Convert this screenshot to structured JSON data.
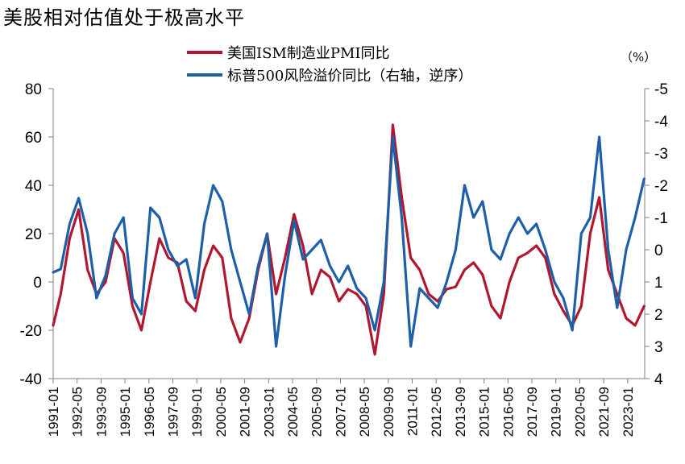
{
  "chart_data": {
    "type": "line",
    "title": "美股相对估值处于极高水平",
    "unit_label": "（%）",
    "y_left": {
      "range": [
        -40,
        80
      ],
      "ticks": [
        80,
        60,
        40,
        20,
        0,
        -20,
        -40
      ]
    },
    "y_right": {
      "range": [
        -5,
        4
      ],
      "reversed": true,
      "ticks": [
        -5,
        -4,
        -3,
        -2,
        -1,
        0,
        1,
        2,
        3,
        4
      ]
    },
    "x_ticks": [
      "1991-01",
      "1992-05",
      "1993-09",
      "1995-01",
      "1996-05",
      "1997-09",
      "1999-01",
      "2000-05",
      "2001-09",
      "2003-01",
      "2004-05",
      "2005-09",
      "2007-01",
      "2008-05",
      "2009-09",
      "2011-01",
      "2012-05",
      "2013-09",
      "2015-01",
      "2016-05",
      "2017-09",
      "2019-01",
      "2020-05",
      "2021-09",
      "2023-01"
    ],
    "legend_placement": "top",
    "series": [
      {
        "name": "美国ISM制造业PMI同比",
        "axis": "left",
        "color": "#b0182f",
        "points": [
          [
            "1991-01",
            -18
          ],
          [
            "1991-06",
            -5
          ],
          [
            "1991-12",
            18
          ],
          [
            "1992-06",
            30
          ],
          [
            "1992-12",
            5
          ],
          [
            "1993-06",
            -5
          ],
          [
            "1993-12",
            0
          ],
          [
            "1994-06",
            18
          ],
          [
            "1994-12",
            12
          ],
          [
            "1995-06",
            -10
          ],
          [
            "1995-12",
            -20
          ],
          [
            "1996-06",
            0
          ],
          [
            "1996-12",
            18
          ],
          [
            "1997-06",
            10
          ],
          [
            "1997-12",
            8
          ],
          [
            "1998-06",
            -8
          ],
          [
            "1998-12",
            -12
          ],
          [
            "1999-06",
            5
          ],
          [
            "1999-12",
            15
          ],
          [
            "2000-06",
            10
          ],
          [
            "2000-12",
            -15
          ],
          [
            "2001-06",
            -25
          ],
          [
            "2001-12",
            -15
          ],
          [
            "2002-06",
            5
          ],
          [
            "2002-12",
            20
          ],
          [
            "2003-06",
            -5
          ],
          [
            "2003-12",
            10
          ],
          [
            "2004-06",
            28
          ],
          [
            "2004-12",
            15
          ],
          [
            "2005-06",
            -5
          ],
          [
            "2005-12",
            5
          ],
          [
            "2006-06",
            2
          ],
          [
            "2006-12",
            -8
          ],
          [
            "2007-06",
            -3
          ],
          [
            "2007-12",
            -5
          ],
          [
            "2008-06",
            -10
          ],
          [
            "2008-12",
            -30
          ],
          [
            "2009-06",
            -5
          ],
          [
            "2009-12",
            65
          ],
          [
            "2010-06",
            35
          ],
          [
            "2010-12",
            10
          ],
          [
            "2011-06",
            5
          ],
          [
            "2011-12",
            -5
          ],
          [
            "2012-06",
            -8
          ],
          [
            "2012-12",
            -3
          ],
          [
            "2013-06",
            -2
          ],
          [
            "2013-12",
            5
          ],
          [
            "2014-06",
            8
          ],
          [
            "2014-12",
            3
          ],
          [
            "2015-06",
            -10
          ],
          [
            "2015-12",
            -15
          ],
          [
            "2016-06",
            0
          ],
          [
            "2016-12",
            10
          ],
          [
            "2017-06",
            12
          ],
          [
            "2017-12",
            15
          ],
          [
            "2018-06",
            10
          ],
          [
            "2018-12",
            -5
          ],
          [
            "2019-06",
            -12
          ],
          [
            "2019-12",
            -18
          ],
          [
            "2020-06",
            -10
          ],
          [
            "2020-12",
            20
          ],
          [
            "2021-06",
            35
          ],
          [
            "2021-12",
            5
          ],
          [
            "2022-06",
            -5
          ],
          [
            "2022-12",
            -15
          ],
          [
            "2023-06",
            -18
          ],
          [
            "2023-12",
            -10
          ]
        ]
      },
      {
        "name": "标普500风险溢价同比（右轴，逆序）",
        "axis": "right",
        "color": "#1f5fa8",
        "points": [
          [
            "1991-01",
            0.7
          ],
          [
            "1991-06",
            0.6
          ],
          [
            "1991-12",
            -0.8
          ],
          [
            "1992-06",
            -1.6
          ],
          [
            "1992-12",
            -0.5
          ],
          [
            "1993-06",
            1.5
          ],
          [
            "1993-12",
            0.8
          ],
          [
            "1994-06",
            -0.5
          ],
          [
            "1994-12",
            -1.0
          ],
          [
            "1995-06",
            1.5
          ],
          [
            "1995-12",
            2.0
          ],
          [
            "1996-06",
            -1.3
          ],
          [
            "1996-12",
            -1.0
          ],
          [
            "1997-06",
            0.0
          ],
          [
            "1997-12",
            0.5
          ],
          [
            "1998-06",
            0.3
          ],
          [
            "1998-12",
            1.5
          ],
          [
            "1999-06",
            -0.8
          ],
          [
            "1999-12",
            -2.0
          ],
          [
            "2000-06",
            -1.5
          ],
          [
            "2000-12",
            0.0
          ],
          [
            "2001-06",
            1.0
          ],
          [
            "2001-12",
            2.0
          ],
          [
            "2002-06",
            0.5
          ],
          [
            "2002-12",
            -0.5
          ],
          [
            "2003-06",
            3.0
          ],
          [
            "2003-12",
            0.8
          ],
          [
            "2004-06",
            -0.9
          ],
          [
            "2004-12",
            0.3
          ],
          [
            "2005-06",
            0.0
          ],
          [
            "2005-12",
            -0.3
          ],
          [
            "2006-06",
            0.5
          ],
          [
            "2006-12",
            1.0
          ],
          [
            "2007-06",
            0.5
          ],
          [
            "2007-12",
            1.2
          ],
          [
            "2008-06",
            1.5
          ],
          [
            "2008-12",
            2.5
          ],
          [
            "2009-06",
            1.0
          ],
          [
            "2009-12",
            -3.5
          ],
          [
            "2010-06",
            -1.0
          ],
          [
            "2010-12",
            3.0
          ],
          [
            "2011-06",
            1.2
          ],
          [
            "2011-12",
            1.5
          ],
          [
            "2012-06",
            1.8
          ],
          [
            "2012-12",
            1.0
          ],
          [
            "2013-06",
            0.0
          ],
          [
            "2013-12",
            -2.0
          ],
          [
            "2014-06",
            -1.0
          ],
          [
            "2014-12",
            -1.5
          ],
          [
            "2015-06",
            0.0
          ],
          [
            "2015-12",
            0.3
          ],
          [
            "2016-06",
            -0.5
          ],
          [
            "2016-12",
            -1.0
          ],
          [
            "2017-06",
            -0.5
          ],
          [
            "2017-12",
            -0.8
          ],
          [
            "2018-06",
            0.0
          ],
          [
            "2018-12",
            1.0
          ],
          [
            "2019-06",
            1.5
          ],
          [
            "2019-12",
            2.5
          ],
          [
            "2020-06",
            -0.5
          ],
          [
            "2020-12",
            -1.0
          ],
          [
            "2021-06",
            -3.5
          ],
          [
            "2021-12",
            0.0
          ],
          [
            "2022-06",
            1.8
          ],
          [
            "2022-12",
            0.0
          ],
          [
            "2023-06",
            -1.0
          ],
          [
            "2023-12",
            -2.2
          ]
        ]
      }
    ]
  }
}
